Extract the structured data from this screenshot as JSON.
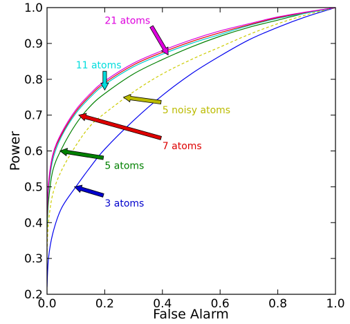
{
  "chart_data": {
    "type": "line",
    "title": "",
    "xlabel": "False Alarm",
    "ylabel": "Power",
    "xlim": [
      0.0,
      1.0
    ],
    "ylim": [
      0.2,
      1.0
    ],
    "xticks": [
      "0.0",
      "0.2",
      "0.4",
      "0.6",
      "0.8",
      "1.0"
    ],
    "yticks": [
      "0.2",
      "0.3",
      "0.4",
      "0.5",
      "0.6",
      "0.7",
      "0.8",
      "0.9",
      "1.0"
    ],
    "grid": false,
    "legend": "none",
    "series": [
      {
        "name": "3 atoms",
        "color": "#0000ee",
        "dash": "solid",
        "x": [
          0,
          0.005,
          0.02,
          0.05,
          0.1,
          0.15,
          0.2,
          0.3,
          0.4,
          0.5,
          0.6,
          0.7,
          0.8,
          0.9,
          1.0
        ],
        "y": [
          0.22,
          0.3,
          0.37,
          0.44,
          0.5,
          0.555,
          0.605,
          0.685,
          0.755,
          0.815,
          0.865,
          0.91,
          0.945,
          0.975,
          1.0
        ]
      },
      {
        "name": "5 noisy atoms",
        "color": "#cccc00",
        "dash": "dashed",
        "x": [
          0,
          0.005,
          0.02,
          0.05,
          0.1,
          0.15,
          0.2,
          0.3,
          0.4,
          0.5,
          0.6,
          0.7,
          0.8,
          0.9,
          1.0
        ],
        "y": [
          0.32,
          0.4,
          0.48,
          0.545,
          0.615,
          0.67,
          0.705,
          0.765,
          0.815,
          0.855,
          0.89,
          0.925,
          0.955,
          0.98,
          1.0
        ]
      },
      {
        "name": "5 atoms",
        "color": "#008000",
        "dash": "solid",
        "x": [
          0,
          0.005,
          0.02,
          0.05,
          0.1,
          0.15,
          0.2,
          0.3,
          0.4,
          0.5,
          0.6,
          0.7,
          0.8,
          0.9,
          1.0
        ],
        "y": [
          0.38,
          0.46,
          0.545,
          0.605,
          0.675,
          0.725,
          0.76,
          0.815,
          0.855,
          0.89,
          0.92,
          0.945,
          0.965,
          0.985,
          1.0
        ]
      },
      {
        "name": "11 atoms",
        "color": "#00cccc",
        "dash": "solid",
        "x": [
          0,
          0.005,
          0.02,
          0.05,
          0.1,
          0.15,
          0.2,
          0.3,
          0.4,
          0.5,
          0.6,
          0.7,
          0.8,
          0.9,
          1.0
        ],
        "y": [
          0.4,
          0.49,
          0.575,
          0.64,
          0.705,
          0.75,
          0.785,
          0.835,
          0.87,
          0.9,
          0.925,
          0.95,
          0.97,
          0.985,
          1.0
        ]
      },
      {
        "name": "7 atoms",
        "color": "#dd0000",
        "dash": "solid",
        "x": [
          0,
          0.005,
          0.02,
          0.05,
          0.1,
          0.15,
          0.2,
          0.3,
          0.4,
          0.5,
          0.6,
          0.7,
          0.8,
          0.9,
          1.0
        ],
        "y": [
          0.41,
          0.5,
          0.585,
          0.645,
          0.71,
          0.755,
          0.79,
          0.84,
          0.875,
          0.905,
          0.93,
          0.952,
          0.972,
          0.987,
          1.0
        ]
      },
      {
        "name": "21 atoms",
        "color": "#dd00dd",
        "dash": "solid",
        "x": [
          0,
          0.005,
          0.02,
          0.05,
          0.1,
          0.15,
          0.2,
          0.3,
          0.4,
          0.5,
          0.6,
          0.7,
          0.8,
          0.9,
          1.0
        ],
        "y": [
          0.42,
          0.51,
          0.59,
          0.65,
          0.715,
          0.76,
          0.795,
          0.845,
          0.88,
          0.91,
          0.935,
          0.955,
          0.974,
          0.988,
          1.0
        ]
      }
    ],
    "annotations": [
      {
        "text": "21 atoms",
        "color": "#dd00dd",
        "text_at": [
          0.2,
          0.955
        ],
        "arrow_to": [
          0.42,
          0.868
        ]
      },
      {
        "text": "11 atoms",
        "color": "#00dddd",
        "text_at": [
          0.1,
          0.83
        ],
        "arrow_to": [
          0.2,
          0.77
        ]
      },
      {
        "text": "5 noisy atoms",
        "color": "#bbbb00",
        "text_at": [
          0.4,
          0.705
        ],
        "arrow_to": [
          0.265,
          0.75
        ]
      },
      {
        "text": "7 atoms",
        "color": "#dd0000",
        "text_at": [
          0.4,
          0.605
        ],
        "arrow_to": [
          0.11,
          0.7
        ]
      },
      {
        "text": "5 atoms",
        "color": "#008000",
        "text_at": [
          0.2,
          0.55
        ],
        "arrow_to": [
          0.045,
          0.6
        ]
      },
      {
        "text": "3 atoms",
        "color": "#0000cc",
        "text_at": [
          0.2,
          0.445
        ],
        "arrow_to": [
          0.095,
          0.5
        ]
      }
    ]
  }
}
